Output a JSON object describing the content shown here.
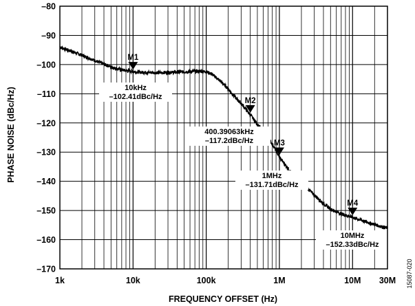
{
  "figure_id": "15087-020",
  "chart_data": {
    "type": "line",
    "title": "",
    "xlabel": "FREQUENCY OFFSET (Hz)",
    "ylabel": "PHASE NOISE (dBc/Hz)",
    "x_scale": "log",
    "xlim": [
      1000,
      30000000
    ],
    "ylim": [
      -170,
      -80
    ],
    "grid": true,
    "x_ticks": [
      {
        "value": 1000,
        "label": "1k"
      },
      {
        "value": 10000,
        "label": "10k"
      },
      {
        "value": 100000,
        "label": "100k"
      },
      {
        "value": 1000000,
        "label": "1M"
      },
      {
        "value": 10000000,
        "label": "10M"
      },
      {
        "value": 30000000,
        "label": "30M"
      }
    ],
    "y_ticks": [
      {
        "value": -80,
        "label": "–80"
      },
      {
        "value": -90,
        "label": "–90"
      },
      {
        "value": -100,
        "label": "–100"
      },
      {
        "value": -110,
        "label": "–110"
      },
      {
        "value": -120,
        "label": "–120"
      },
      {
        "value": -130,
        "label": "–130"
      },
      {
        "value": -140,
        "label": "–140"
      },
      {
        "value": -150,
        "label": "–150"
      },
      {
        "value": -160,
        "label": "–160"
      },
      {
        "value": -170,
        "label": "–170"
      }
    ],
    "series": [
      {
        "x": [
          1000,
          1200,
          1500,
          2000,
          2500,
          3000,
          4000,
          5000,
          6000,
          7000,
          8000,
          10000,
          12000,
          15000,
          20000,
          30000,
          40000,
          50000,
          60000,
          70000,
          80000,
          100000,
          120000,
          150000,
          200000,
          250000,
          300000,
          400000,
          500000,
          600000,
          700000,
          800000,
          1000000,
          1200000,
          1500000,
          2000000,
          2500000,
          3000000,
          4000000,
          5000000,
          6000000,
          7000000,
          8000000,
          10000000,
          12000000,
          15000000,
          20000000,
          25000000,
          30000000
        ],
        "y": [
          -94,
          -94.8,
          -95.6,
          -96.8,
          -97.8,
          -98.6,
          -99.9,
          -100.8,
          -101.4,
          -101.8,
          -102.1,
          -102.41,
          -102.6,
          -102.7,
          -102.8,
          -102.7,
          -102.6,
          -102.5,
          -102.4,
          -102.3,
          -102.3,
          -102.4,
          -103.3,
          -105.3,
          -108.3,
          -111.3,
          -113.3,
          -117.2,
          -120.4,
          -123,
          -125.3,
          -127.2,
          -131.71,
          -134.3,
          -137.4,
          -140.6,
          -142.7,
          -144.7,
          -147.6,
          -149.5,
          -150.4,
          -151.1,
          -151.6,
          -152.33,
          -153,
          -153.8,
          -154.8,
          -155.5,
          -156
        ]
      }
    ],
    "markers": [
      {
        "name": "M1",
        "x": 10000,
        "y": -102.41,
        "freq_label": "10kHz",
        "value_label": "–102.41dBc/Hz"
      },
      {
        "name": "M2",
        "x": 400390.63,
        "y": -117.2,
        "freq_label": "400.39063kHz",
        "value_label": "–117.2dBc/Hz"
      },
      {
        "name": "M3",
        "x": 1000000,
        "y": -131.71,
        "freq_label": "1MHz",
        "value_label": "–131.71dBc/Hz"
      },
      {
        "name": "M4",
        "x": 10000000,
        "y": -152.33,
        "freq_label": "10MHz",
        "value_label": "–152.33dBc/Hz"
      }
    ]
  }
}
